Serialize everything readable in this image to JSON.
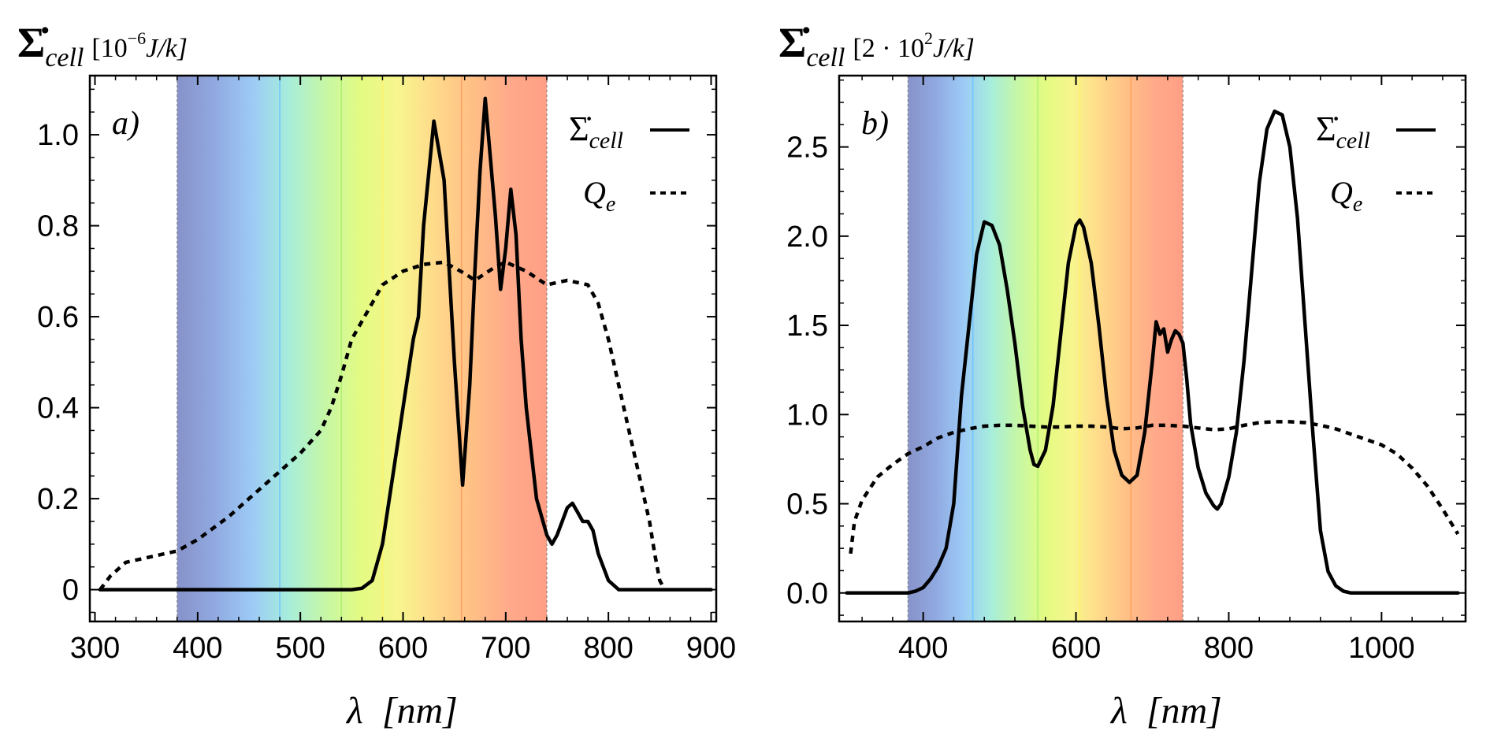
{
  "chart_data": [
    {
      "panel": "a)",
      "type": "line",
      "ylabel": {
        "symbol": "Σ̇",
        "sub": "cell",
        "unit_pre": "[10",
        "unit_exp": "−6",
        "unit_post": "J/k]"
      },
      "xlabel": {
        "symbol": "λ",
        "unit": "[nm]"
      },
      "xlim": [
        295,
        905
      ],
      "ylim": [
        -0.07,
        1.13
      ],
      "xticks": [
        300,
        400,
        500,
        600,
        700,
        800,
        900
      ],
      "xtick_labels": [
        "300",
        "400",
        "500",
        "600",
        "700",
        "800",
        "900"
      ],
      "yticks": [
        0,
        0.2,
        0.4,
        0.6,
        0.8,
        1.0
      ],
      "ytick_labels": [
        "0",
        "0.2",
        "0.4",
        "0.6",
        "0.8",
        "1.0"
      ],
      "legend_position": "top-right",
      "visible_band": [
        380,
        740
      ],
      "color_lines": [
        480,
        540,
        580,
        657
      ],
      "series": [
        {
          "name": "Σ̇_cell",
          "style": "solid",
          "x": [
            305,
            400,
            500,
            550,
            560,
            570,
            580,
            590,
            600,
            610,
            615,
            620,
            630,
            640,
            650,
            658,
            665,
            670,
            675,
            680,
            690,
            695,
            700,
            705,
            710,
            715,
            720,
            730,
            740,
            745,
            750,
            760,
            765,
            770,
            775,
            780,
            785,
            790,
            800,
            810,
            820,
            900
          ],
          "y": [
            0,
            0,
            0,
            0,
            0.003,
            0.02,
            0.1,
            0.25,
            0.4,
            0.55,
            0.6,
            0.8,
            1.03,
            0.9,
            0.5,
            0.23,
            0.45,
            0.7,
            0.92,
            1.08,
            0.82,
            0.66,
            0.75,
            0.88,
            0.78,
            0.55,
            0.4,
            0.2,
            0.12,
            0.1,
            0.12,
            0.18,
            0.19,
            0.17,
            0.15,
            0.15,
            0.13,
            0.08,
            0.02,
            0,
            0,
            0
          ]
        },
        {
          "name": "Q_e",
          "style": "dotted",
          "x": [
            305,
            315,
            330,
            360,
            380,
            400,
            430,
            460,
            480,
            500,
            520,
            530,
            540,
            550,
            570,
            580,
            600,
            620,
            640,
            660,
            670,
            690,
            700,
            720,
            740,
            760,
            780,
            790,
            800,
            810,
            820,
            830,
            840,
            845,
            850,
            855
          ],
          "y": [
            0,
            0.03,
            0.06,
            0.075,
            0.085,
            0.11,
            0.16,
            0.22,
            0.26,
            0.3,
            0.35,
            0.4,
            0.47,
            0.55,
            0.63,
            0.67,
            0.7,
            0.715,
            0.72,
            0.695,
            0.68,
            0.71,
            0.72,
            0.7,
            0.67,
            0.68,
            0.67,
            0.63,
            0.55,
            0.45,
            0.35,
            0.25,
            0.15,
            0.08,
            0.02,
            0
          ]
        }
      ]
    },
    {
      "panel": "b)",
      "type": "line",
      "ylabel": {
        "symbol": "Σ̇",
        "sub": "cell",
        "unit_pre": "[2 · 10",
        "unit_exp": "2",
        "unit_post": "J/k]"
      },
      "xlabel": {
        "symbol": "λ",
        "unit": "[nm]"
      },
      "xlim": [
        290,
        1110
      ],
      "ylim": [
        -0.16,
        2.9
      ],
      "xticks": [
        400,
        600,
        800,
        1000
      ],
      "xtick_labels": [
        "400",
        "600",
        "800",
        "1000"
      ],
      "yticks": [
        0,
        0.5,
        1.0,
        1.5,
        2.0,
        2.5
      ],
      "ytick_labels": [
        "0.0",
        "0.5",
        "1.0",
        "1.5",
        "2.0",
        "2.5"
      ],
      "legend_position": "top-right",
      "visible_band": [
        380,
        740
      ],
      "color_lines": [
        465,
        550,
        605,
        672
      ],
      "series": [
        {
          "name": "Σ̇_cell",
          "style": "solid",
          "x": [
            300,
            380,
            390,
            400,
            410,
            420,
            430,
            440,
            450,
            460,
            470,
            480,
            490,
            500,
            510,
            520,
            530,
            540,
            545,
            550,
            560,
            570,
            580,
            590,
            600,
            605,
            610,
            620,
            630,
            640,
            650,
            660,
            670,
            680,
            690,
            700,
            705,
            710,
            715,
            720,
            725,
            730,
            735,
            740,
            745,
            750,
            760,
            770,
            780,
            785,
            790,
            800,
            810,
            820,
            830,
            840,
            850,
            860,
            870,
            880,
            890,
            900,
            910,
            920,
            930,
            940,
            950,
            960,
            1000,
            1100
          ],
          "y": [
            0,
            0,
            0.01,
            0.03,
            0.08,
            0.15,
            0.25,
            0.5,
            1.1,
            1.5,
            1.9,
            2.08,
            2.06,
            1.95,
            1.7,
            1.4,
            1.05,
            0.8,
            0.72,
            0.71,
            0.8,
            1.05,
            1.45,
            1.85,
            2.06,
            2.09,
            2.05,
            1.85,
            1.5,
            1.1,
            0.8,
            0.66,
            0.62,
            0.66,
            0.9,
            1.3,
            1.52,
            1.45,
            1.48,
            1.35,
            1.42,
            1.47,
            1.45,
            1.4,
            1.2,
            0.95,
            0.7,
            0.56,
            0.49,
            0.47,
            0.5,
            0.65,
            0.9,
            1.3,
            1.8,
            2.3,
            2.6,
            2.7,
            2.68,
            2.5,
            2.1,
            1.5,
            0.9,
            0.35,
            0.12,
            0.04,
            0.01,
            0,
            0,
            0
          ]
        },
        {
          "name": "Q_e",
          "style": "dotted",
          "x": [
            305,
            310,
            320,
            340,
            360,
            380,
            400,
            420,
            440,
            460,
            480,
            500,
            520,
            540,
            560,
            580,
            600,
            620,
            640,
            660,
            680,
            700,
            720,
            740,
            760,
            780,
            800,
            820,
            840,
            860,
            880,
            900,
            920,
            940,
            960,
            980,
            1000,
            1020,
            1040,
            1060,
            1080,
            1100
          ],
          "y": [
            0.22,
            0.4,
            0.52,
            0.65,
            0.72,
            0.78,
            0.82,
            0.87,
            0.9,
            0.92,
            0.935,
            0.94,
            0.94,
            0.935,
            0.93,
            0.93,
            0.935,
            0.935,
            0.93,
            0.92,
            0.925,
            0.94,
            0.94,
            0.935,
            0.925,
            0.915,
            0.92,
            0.94,
            0.955,
            0.96,
            0.96,
            0.955,
            0.94,
            0.92,
            0.89,
            0.86,
            0.83,
            0.78,
            0.7,
            0.6,
            0.47,
            0.33
          ]
        }
      ]
    }
  ],
  "legend": {
    "entries": [
      {
        "symbol": "Σ̇",
        "sub": "cell",
        "style": "solid"
      },
      {
        "symbol": "Q",
        "sub": "e",
        "style": "dotted"
      }
    ]
  },
  "colors": {
    "spectrum": [
      "#8792c9",
      "#90a9e0",
      "#9cc9f6",
      "#a6eddc",
      "#c6f7a6",
      "#e4fb82",
      "#f7f58e",
      "#ffd98a",
      "#ffbf86",
      "#ffa98a",
      "#ff9f85"
    ],
    "boundary_lines": [
      "#6fc3ff",
      "#aff071",
      "#fff26a",
      "#ff9f5f"
    ],
    "curve": "#000000"
  }
}
